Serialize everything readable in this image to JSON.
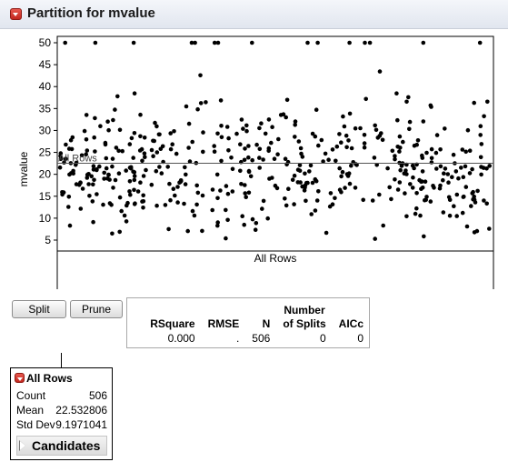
{
  "report": {
    "title": "Partition for mvalue"
  },
  "plot": {
    "y_axis_label": "mvalue",
    "y_ticks": [
      "5",
      "10",
      "15",
      "20",
      "25",
      "30",
      "35",
      "40",
      "45",
      "50"
    ],
    "x_axis_label": "All Rows",
    "mean_line_label": "All Rows",
    "point_color": "#000000",
    "line_color": "#555555"
  },
  "chart_data": {
    "type": "scatter",
    "xlabel": "All Rows",
    "ylabel": "mvalue",
    "ylim": [
      4,
      51
    ],
    "n_points": 506,
    "reference_line": {
      "label": "All Rows",
      "y": 22.532806
    },
    "x": [],
    "y": []
  },
  "buttons": {
    "split_label": "Split",
    "prune_label": "Prune"
  },
  "stats": {
    "headers": {
      "rsquare": "RSquare",
      "rmse": "RMSE",
      "n": "N",
      "number_of_splits_line1": "Number",
      "number_of_splits_line2": "of Splits",
      "aicc": "AICc"
    },
    "values": {
      "rsquare": "0.000",
      "rmse": ".",
      "n": "506",
      "number_of_splits": "0",
      "aicc": "0"
    }
  },
  "node": {
    "title": "All Rows",
    "rows": [
      {
        "label": "Count",
        "value": "506"
      },
      {
        "label": "Mean",
        "value": "22.532806"
      },
      {
        "label": "Std Dev",
        "value": "9.1971041"
      }
    ],
    "candidates_label": "Candidates"
  },
  "colors": {
    "disclosure_red": "#d23a30",
    "header_bg": "#e6eaf2"
  }
}
